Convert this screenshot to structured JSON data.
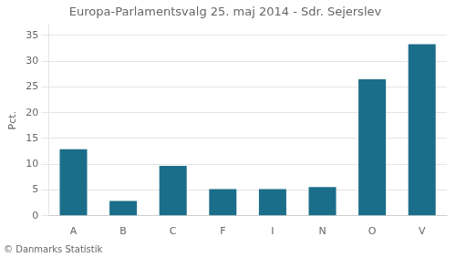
{
  "chart_data": {
    "type": "bar",
    "title": "Europa-Parlamentsvalg 25. maj 2014 - Sdr. Sejerslev",
    "y_label": "Pct.",
    "footer": "© Danmarks Statistik",
    "categories": [
      "A",
      "B",
      "C",
      "F",
      "I",
      "N",
      "O",
      "V"
    ],
    "values": [
      12.9,
      2.9,
      9.7,
      5.2,
      5.2,
      5.6,
      26.5,
      33.3
    ],
    "color": "#1b6e8a",
    "ylim": [
      0,
      37
    ],
    "yticks": [
      0,
      5,
      10,
      15,
      20,
      25,
      30,
      35
    ],
    "grid": true
  }
}
